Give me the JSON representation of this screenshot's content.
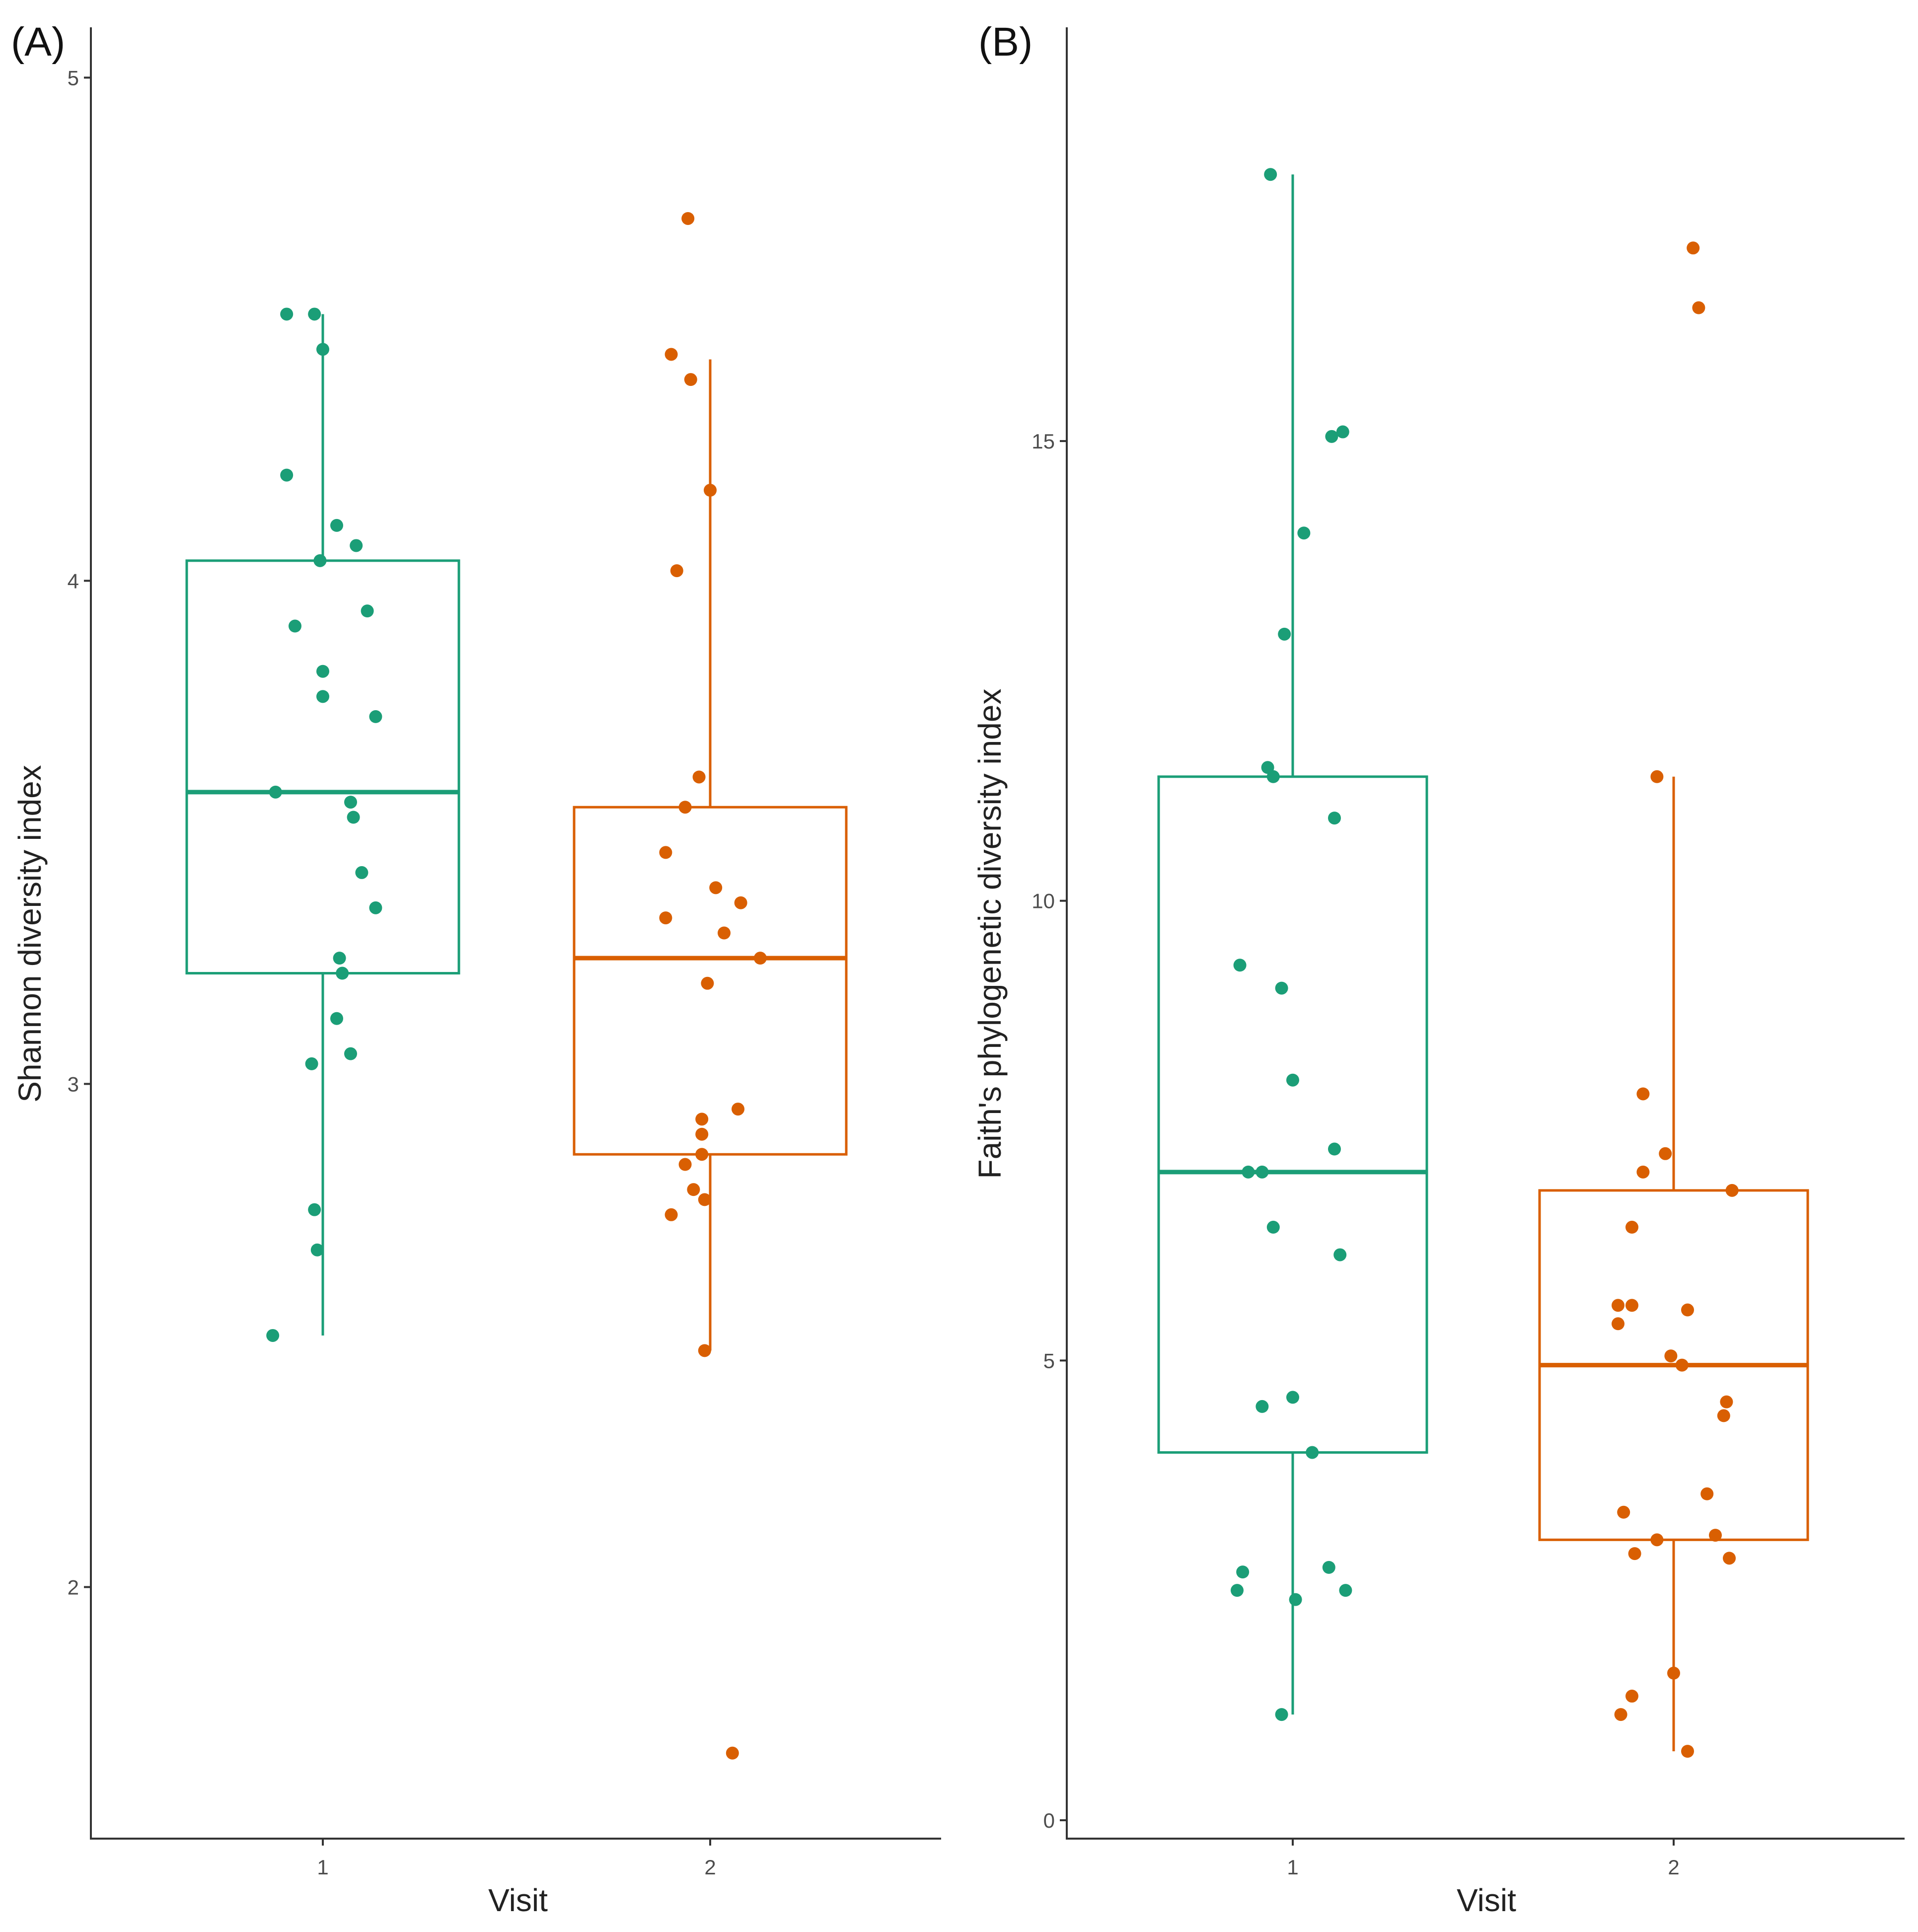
{
  "colors": {
    "visit1": "#1b9e77",
    "visit2": "#d95f02",
    "axis": "#333333",
    "tick_text": "#4d4d4d"
  },
  "chart_data": [
    {
      "panel_label": "(A)",
      "type": "boxplot",
      "xlabel": "Visit",
      "ylabel": "Shannon diversity index",
      "categories": [
        "1",
        "2"
      ],
      "ylim": [
        1.5,
        5.1
      ],
      "yticks": [
        2,
        3,
        4,
        5
      ],
      "ytick_labels": [
        "2",
        "3",
        "4",
        "5"
      ],
      "series": [
        {
          "name": "1",
          "color": "#1b9e77",
          "box": {
            "whisker_low": 2.5,
            "q1": 3.22,
            "median": 3.58,
            "q3": 4.04,
            "whisker_high": 4.53
          },
          "points": [
            [
              -0.13,
              4.53
            ],
            [
              -0.03,
              4.53
            ],
            [
              0.0,
              4.46
            ],
            [
              -0.13,
              4.21
            ],
            [
              0.05,
              4.11
            ],
            [
              0.12,
              4.07
            ],
            [
              -0.01,
              4.04
            ],
            [
              0.16,
              3.94
            ],
            [
              -0.1,
              3.91
            ],
            [
              0.0,
              3.82
            ],
            [
              0.0,
              3.77
            ],
            [
              0.19,
              3.73
            ],
            [
              -0.17,
              3.58
            ],
            [
              0.1,
              3.56
            ],
            [
              0.11,
              3.53
            ],
            [
              0.14,
              3.42
            ],
            [
              0.19,
              3.35
            ],
            [
              0.06,
              3.25
            ],
            [
              0.07,
              3.22
            ],
            [
              0.05,
              3.13
            ],
            [
              0.1,
              3.06
            ],
            [
              -0.04,
              3.04
            ],
            [
              -0.03,
              2.75
            ],
            [
              -0.02,
              2.67
            ],
            [
              -0.18,
              2.5
            ]
          ]
        },
        {
          "name": "2",
          "color": "#d95f02",
          "box": {
            "whisker_low": 2.47,
            "q1": 2.86,
            "median": 3.25,
            "q3": 3.55,
            "whisker_high": 4.44
          },
          "points": [
            [
              -0.08,
              4.72
            ],
            [
              -0.14,
              4.45
            ],
            [
              -0.07,
              4.4
            ],
            [
              0.0,
              4.18
            ],
            [
              -0.12,
              4.02
            ],
            [
              -0.04,
              3.61
            ],
            [
              -0.09,
              3.55
            ],
            [
              -0.16,
              3.46
            ],
            [
              0.02,
              3.39
            ],
            [
              0.11,
              3.36
            ],
            [
              -0.16,
              3.33
            ],
            [
              0.05,
              3.3
            ],
            [
              0.18,
              3.25
            ],
            [
              -0.01,
              3.2
            ],
            [
              0.1,
              2.95
            ],
            [
              -0.03,
              2.93
            ],
            [
              -0.03,
              2.9
            ],
            [
              -0.03,
              2.86
            ],
            [
              -0.09,
              2.84
            ],
            [
              -0.06,
              2.79
            ],
            [
              -0.02,
              2.77
            ],
            [
              -0.14,
              2.74
            ],
            [
              -0.02,
              2.47
            ],
            [
              0.08,
              1.67
            ]
          ]
        }
      ]
    },
    {
      "panel_label": "(B)",
      "type": "boxplot",
      "xlabel": "Visit",
      "ylabel": "Faith's phylogenetic diversity index",
      "categories": [
        "1",
        "2"
      ],
      "ylim": [
        -0.2,
        19.5
      ],
      "yticks": [
        0,
        5,
        10,
        15
      ],
      "ytick_labels": [
        "0",
        "5",
        "10",
        "15"
      ],
      "series": [
        {
          "name": "1",
          "color": "#1b9e77",
          "box": {
            "whisker_low": 1.15,
            "q1": 4.0,
            "median": 7.05,
            "q3": 11.35,
            "whisker_high": 17.9
          },
          "points": [
            [
              -0.08,
              17.9
            ],
            [
              0.18,
              15.1
            ],
            [
              0.14,
              15.05
            ],
            [
              0.04,
              14.0
            ],
            [
              -0.03,
              12.9
            ],
            [
              -0.09,
              11.45
            ],
            [
              -0.07,
              11.35
            ],
            [
              0.15,
              10.9
            ],
            [
              -0.19,
              9.3
            ],
            [
              -0.04,
              9.05
            ],
            [
              0.0,
              8.05
            ],
            [
              0.15,
              7.3
            ],
            [
              -0.16,
              7.05
            ],
            [
              -0.11,
              7.05
            ],
            [
              -0.07,
              6.45
            ],
            [
              0.17,
              6.15
            ],
            [
              0.0,
              4.6
            ],
            [
              -0.11,
              4.5
            ],
            [
              0.07,
              4.0
            ],
            [
              -0.18,
              2.7
            ],
            [
              0.13,
              2.75
            ],
            [
              -0.2,
              2.5
            ],
            [
              0.19,
              2.5
            ],
            [
              0.01,
              2.4
            ],
            [
              -0.04,
              1.15
            ]
          ]
        },
        {
          "name": "2",
          "color": "#d95f02",
          "box": {
            "whisker_low": 0.75,
            "q1": 3.05,
            "median": 4.95,
            "q3": 6.85,
            "whisker_high": 11.35
          },
          "points": [
            [
              0.07,
              17.1
            ],
            [
              0.09,
              16.45
            ],
            [
              -0.06,
              11.35
            ],
            [
              -0.11,
              7.9
            ],
            [
              0.21,
              6.85
            ],
            [
              -0.11,
              7.05
            ],
            [
              -0.03,
              7.25
            ],
            [
              -0.15,
              6.45
            ],
            [
              -0.15,
              5.6
            ],
            [
              -0.2,
              5.6
            ],
            [
              0.05,
              5.55
            ],
            [
              -0.2,
              5.4
            ],
            [
              -0.01,
              5.05
            ],
            [
              0.03,
              4.95
            ],
            [
              0.19,
              4.55
            ],
            [
              0.18,
              4.4
            ],
            [
              0.12,
              3.55
            ],
            [
              -0.18,
              3.35
            ],
            [
              -0.06,
              3.05
            ],
            [
              0.15,
              3.1
            ],
            [
              -0.14,
              2.9
            ],
            [
              0.2,
              2.85
            ],
            [
              -0.15,
              1.35
            ],
            [
              -0.19,
              1.15
            ],
            [
              0.0,
              1.6
            ],
            [
              0.05,
              0.75
            ]
          ]
        }
      ]
    }
  ]
}
